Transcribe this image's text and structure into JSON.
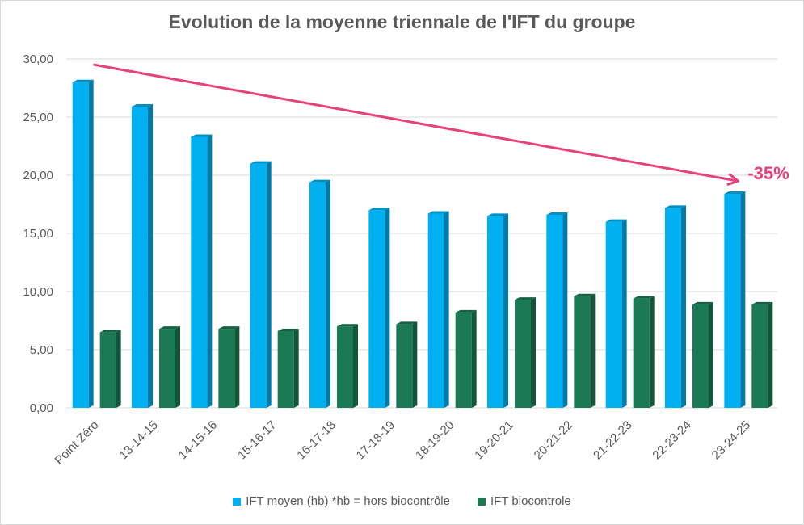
{
  "chart_data": {
    "type": "bar",
    "title": "Evolution de la moyenne triennale de l'IFT du groupe",
    "categories": [
      "Point Zéro",
      "13-14-15",
      "14-15-16",
      "15-16-17",
      "16-17-18",
      "17-18-19",
      "18-19-20",
      "19-20-21",
      "20-21-22",
      "21-22-23",
      "22-23-24",
      "23-24-25"
    ],
    "series": [
      {
        "name": "IFT moyen (hb) *hb = hors biocontrôle",
        "color": "#00b0f0",
        "values": [
          28.0,
          25.9,
          23.3,
          21.0,
          19.4,
          17.0,
          16.7,
          16.5,
          16.6,
          16.0,
          17.2,
          18.4
        ]
      },
      {
        "name": "IFT biocontrole",
        "color": "#1b7a55",
        "values": [
          6.5,
          6.8,
          6.8,
          6.6,
          7.0,
          7.2,
          8.2,
          9.3,
          9.6,
          9.4,
          8.9,
          8.9
        ]
      }
    ],
    "yticks": [
      "0,00",
      "5,00",
      "10,00",
      "15,00",
      "20,00",
      "25,00",
      "30,00"
    ],
    "ylim": [
      0,
      30
    ],
    "grid": true,
    "legend_position": "bottom",
    "annotation": {
      "text": "-35%",
      "color": "#e5417d",
      "arrow": {
        "from": {
          "x": "Point Zéro",
          "y": 29.5
        },
        "to": {
          "x": "23-24-25",
          "y": 19.5
        }
      }
    }
  }
}
